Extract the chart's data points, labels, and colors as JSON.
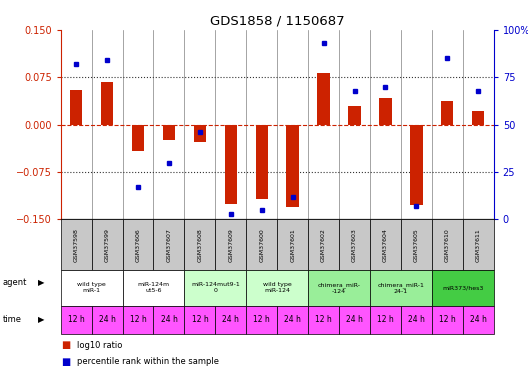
{
  "title": "GDS1858 / 1150687",
  "samples": [
    "GSM37598",
    "GSM37599",
    "GSM37606",
    "GSM37607",
    "GSM37608",
    "GSM37609",
    "GSM37600",
    "GSM37601",
    "GSM37602",
    "GSM37603",
    "GSM37604",
    "GSM37605",
    "GSM37610",
    "GSM37611"
  ],
  "log10_ratio": [
    0.055,
    0.068,
    -0.042,
    -0.025,
    -0.028,
    -0.125,
    -0.118,
    -0.13,
    0.082,
    0.03,
    0.042,
    -0.128,
    0.038,
    0.022
  ],
  "percentile_rank": [
    82,
    84,
    17,
    30,
    46,
    3,
    5,
    12,
    93,
    68,
    70,
    7,
    85,
    68
  ],
  "ylim_left": [
    -0.15,
    0.15
  ],
  "ylim_right": [
    0,
    100
  ],
  "yticks_left": [
    -0.15,
    -0.075,
    0,
    0.075,
    0.15
  ],
  "yticks_right": [
    0,
    25,
    50,
    75,
    100
  ],
  "agent_groups": [
    {
      "label": "wild type\nmiR-1",
      "start": 0,
      "end": 2,
      "color": "#ffffff"
    },
    {
      "label": "miR-124m\nut5-6",
      "start": 2,
      "end": 4,
      "color": "#ffffff"
    },
    {
      "label": "miR-124mut9-1\n0",
      "start": 4,
      "end": 6,
      "color": "#ccffcc"
    },
    {
      "label": "wild type\nmiR-124",
      "start": 6,
      "end": 8,
      "color": "#ccffcc"
    },
    {
      "label": "chimera_miR-\n-124",
      "start": 8,
      "end": 10,
      "color": "#99ee99"
    },
    {
      "label": "chimera_miR-1\n24-1",
      "start": 10,
      "end": 12,
      "color": "#99ee99"
    },
    {
      "label": "miR373/hes3",
      "start": 12,
      "end": 14,
      "color": "#44cc44"
    }
  ],
  "time_labels": [
    "12 h",
    "24 h",
    "12 h",
    "24 h",
    "12 h",
    "24 h",
    "12 h",
    "24 h",
    "12 h",
    "24 h",
    "12 h",
    "24 h",
    "12 h",
    "24 h"
  ],
  "time_color": "#ff55ff",
  "bar_color": "#cc2200",
  "dot_color": "#0000cc",
  "hline_color": "#cc2200",
  "dotted_color": "#333333",
  "axis_left_color": "#cc2200",
  "axis_right_color": "#0000cc",
  "background_color": "#ffffff",
  "sample_bg_color": "#c8c8c8"
}
